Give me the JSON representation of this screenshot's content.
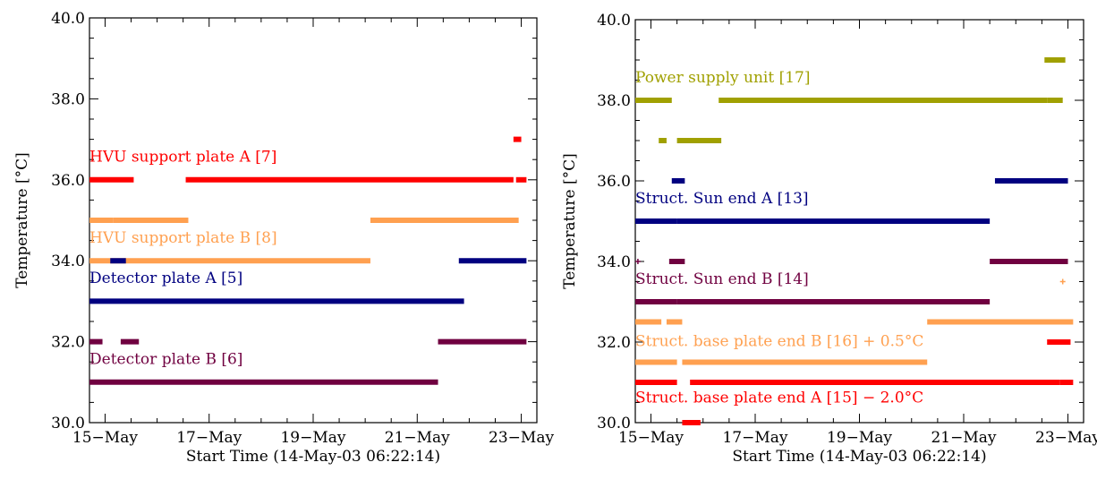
{
  "chart_data": [
    {
      "type": "scatter",
      "xlabel": "Start Time (14-May-03 06:22:14)",
      "ylabel": "Temperature [°C]",
      "ylim": [
        30.0,
        40.0
      ],
      "xlim": [
        14.7,
        23.3
      ],
      "xticks": [
        {
          "value": 15,
          "label": "15−May"
        },
        {
          "value": 17,
          "label": "17−May"
        },
        {
          "value": 19,
          "label": "19−May"
        },
        {
          "value": 21,
          "label": "21−May"
        },
        {
          "value": 23,
          "label": "23−May"
        }
      ],
      "yticks": [
        {
          "value": 30,
          "label": "30.0"
        },
        {
          "value": 32,
          "label": "32.0"
        },
        {
          "value": 34,
          "label": "34.0"
        },
        {
          "value": 36,
          "label": "36.0"
        },
        {
          "value": 38,
          "label": "38.0"
        },
        {
          "value": 40,
          "label": "40.0"
        }
      ],
      "series": [
        {
          "name": "HVU support plate A  [7]",
          "color": "#ff0000",
          "label_at": {
            "x": 14.7,
            "y": 36.45
          },
          "segments": [
            {
              "y": 36.0,
              "x": [
                14.7,
                15.55
              ]
            },
            {
              "y": 36.0,
              "x": [
                16.55,
                22.85
              ]
            },
            {
              "y": 36.0,
              "x": [
                22.9,
                23.1
              ]
            },
            {
              "y": 37.0,
              "x": [
                22.85,
                23.0
              ]
            }
          ]
        },
        {
          "name": "HVU support plate B  [8]",
          "color": "#ffa050",
          "label_at": {
            "x": 14.7,
            "y": 34.45
          },
          "segments": [
            {
              "y": 35.0,
              "x": [
                14.7,
                15.15
              ]
            },
            {
              "y": 35.0,
              "x": [
                15.15,
                16.6
              ]
            },
            {
              "y": 35.0,
              "x": [
                20.1,
                22.95
              ]
            },
            {
              "y": 34.0,
              "x": [
                14.7,
                20.1
              ]
            }
          ]
        },
        {
          "name": "Detector plate A  [5]",
          "color": "#000080",
          "label_at": {
            "x": 14.7,
            "y": 33.45
          },
          "segments": [
            {
              "y": 34.0,
              "x": [
                15.1,
                15.4
              ]
            },
            {
              "y": 34.0,
              "x": [
                21.8,
                23.1
              ]
            },
            {
              "y": 33.0,
              "x": [
                14.7,
                21.9
              ]
            }
          ]
        },
        {
          "name": "Detector plate B  [6]",
          "color": "#700040",
          "label_at": {
            "x": 14.7,
            "y": 31.45
          },
          "segments": [
            {
              "y": 32.0,
              "x": [
                14.7,
                14.95
              ]
            },
            {
              "y": 32.0,
              "x": [
                15.3,
                15.65
              ]
            },
            {
              "y": 32.0,
              "x": [
                21.4,
                23.1
              ]
            },
            {
              "y": 31.0,
              "x": [
                14.7,
                21.4
              ]
            }
          ]
        }
      ]
    },
    {
      "type": "scatter",
      "xlabel": "Start Time (14-May-03 06:22:14)",
      "ylabel": "Temperature [°C]",
      "ylim": [
        30.0,
        40.0
      ],
      "xlim": [
        14.7,
        23.3
      ],
      "xticks": [
        {
          "value": 15,
          "label": "15−May"
        },
        {
          "value": 17,
          "label": "17−May"
        },
        {
          "value": 19,
          "label": "19−May"
        },
        {
          "value": 21,
          "label": "21−May"
        },
        {
          "value": 23,
          "label": "23−May"
        }
      ],
      "yticks": [
        {
          "value": 30,
          "label": "30.0"
        },
        {
          "value": 32,
          "label": "32.0"
        },
        {
          "value": 34,
          "label": "34.0"
        },
        {
          "value": 36,
          "label": "36.0"
        },
        {
          "value": 38,
          "label": "38.0"
        },
        {
          "value": 40,
          "label": "40.0"
        }
      ],
      "series": [
        {
          "name": "Power supply unit [17]",
          "color": "#a0a000",
          "label_at": {
            "x": 14.7,
            "y": 38.45
          },
          "segments": [
            {
              "y": 39.0,
              "x": [
                22.55,
                22.95
              ]
            },
            {
              "y": 38.0,
              "x": [
                14.7,
                15.4
              ]
            },
            {
              "y": 38.0,
              "x": [
                16.3,
                22.6
              ]
            },
            {
              "y": 38.0,
              "x": [
                22.6,
                22.9
              ]
            },
            {
              "y": 37.0,
              "x": [
                15.15,
                15.3
              ]
            },
            {
              "y": 37.0,
              "x": [
                15.5,
                16.35
              ]
            }
          ]
        },
        {
          "name": "Struct. Sun end A  [13]",
          "color": "#000080",
          "label_at": {
            "x": 14.7,
            "y": 35.45
          },
          "segments": [
            {
              "y": 36.0,
              "x": [
                15.4,
                15.65
              ]
            },
            {
              "y": 36.0,
              "x": [
                21.6,
                23.0
              ]
            },
            {
              "y": 35.0,
              "x": [
                14.7,
                15.5
              ]
            },
            {
              "y": 35.0,
              "x": [
                15.5,
                21.5
              ]
            }
          ]
        },
        {
          "name": "Struct. Sun end B  [14]",
          "color": "#700040",
          "label_at": {
            "x": 14.7,
            "y": 33.45
          },
          "segments": [
            {
              "y": 34.0,
              "x": [
                14.75,
                14.85
              ]
            },
            {
              "y": 34.0,
              "x": [
                15.35,
                15.65
              ]
            },
            {
              "y": 34.0,
              "x": [
                21.5,
                23.0
              ]
            },
            {
              "y": 33.0,
              "x": [
                14.7,
                15.5
              ]
            },
            {
              "y": 33.0,
              "x": [
                15.5,
                21.5
              ]
            }
          ]
        },
        {
          "name": "Struct. base plate end B [16] + 0.5°C",
          "color": "#ffa050",
          "label_at": {
            "x": 14.7,
            "y": 31.9
          },
          "segments": [
            {
              "y": 32.5,
              "x": [
                14.7,
                15.2
              ]
            },
            {
              "y": 32.5,
              "x": [
                15.3,
                15.6
              ]
            },
            {
              "y": 32.5,
              "x": [
                20.3,
                23.1
              ]
            },
            {
              "y": 31.5,
              "x": [
                14.7,
                15.5
              ]
            },
            {
              "y": 31.5,
              "x": [
                15.6,
                20.3
              ]
            },
            {
              "y": 33.5,
              "x": [
                22.9,
                22.95
              ]
            }
          ]
        },
        {
          "name": "Struct. base plate end A [15] − 2.0°C",
          "color": "#ff0000",
          "label_at": {
            "x": 14.7,
            "y": 30.5
          },
          "segments": [
            {
              "y": 31.0,
              "x": [
                14.7,
                15.5
              ]
            },
            {
              "y": 31.0,
              "x": [
                15.75,
                22.85
              ]
            },
            {
              "y": 31.0,
              "x": [
                22.85,
                23.1
              ]
            },
            {
              "y": 32.0,
              "x": [
                22.6,
                23.05
              ]
            },
            {
              "y": 30.0,
              "x": [
                15.6,
                15.95
              ]
            }
          ]
        }
      ]
    }
  ]
}
